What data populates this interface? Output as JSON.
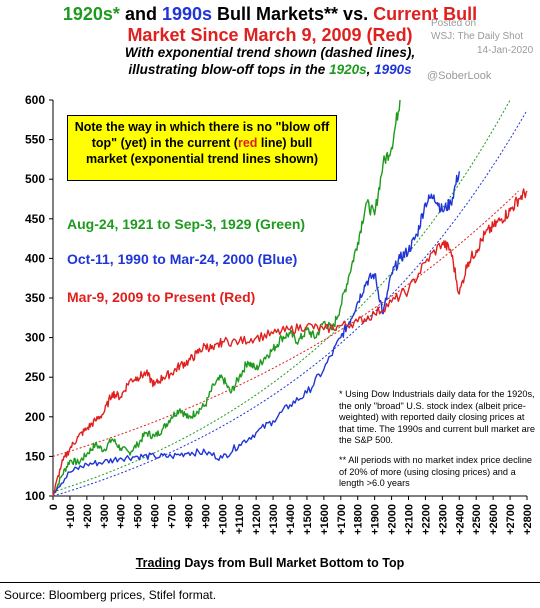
{
  "title": {
    "line1_a": "1920s*",
    "line1_b": " and ",
    "line1_c": "1990s",
    "line1_d": " Bull Markets** vs. ",
    "line1_e": "Current Bull",
    "line2": "Market Since March 9, 2009 (Red)"
  },
  "subtitle": {
    "line1": "With exponential trend shown (dashed lines),",
    "line2_a": "illustrating blow-off tops in the ",
    "line2_b": "1920s",
    "line2_c": ", ",
    "line2_d": "1990s"
  },
  "watermark": {
    "posted": "Posted on",
    "source": "WSJ: The Daily Shot",
    "date": "14-Jan-2020",
    "handle": "@SoberLook"
  },
  "callout": {
    "part1": "Note the way in which there is no \"blow off top\" (yet) in the current (",
    "part2": "red",
    "part3": " line) bull market (exponential trend lines shown)"
  },
  "legend": {
    "green": "Aug-24, 1921 to Sep-3, 1929 (Green)",
    "blue": "Oct-11, 1990 to Mar-24, 2000 (Blue)",
    "red": "Mar-9, 2009 to Present (Red)"
  },
  "notes": {
    "note1": "* Using Dow Industrials daily data for the 1920s, the only \"broad\" U.S. stock index (albeit price-weighted) with reported daily closing prices at that time. The 1990s and current bull market are the S&P 500.",
    "note2": "** All periods with no market index price decline of 20% of more (using closing prices) and a length >6.0 years"
  },
  "source": "Source: Bloomberg prices, Stifel format.",
  "colors": {
    "green": "#1e9a1e",
    "blue": "#1f35d6",
    "red": "#e0201f",
    "callout_bg": "#ffff00"
  },
  "chart_data": {
    "type": "line",
    "xlabel_prefix": "Trading",
    "xlabel_rest": " Days from Bull Market Bottom to Top",
    "ylabel": "",
    "xlim": [
      0,
      2800
    ],
    "ylim": [
      100,
      600
    ],
    "yticks": [
      100,
      150,
      200,
      250,
      300,
      350,
      400,
      450,
      500,
      550,
      600
    ],
    "xticks": [
      "0",
      "+100",
      "+200",
      "+300",
      "+400",
      "+500",
      "+600",
      "+700",
      "+800",
      "+900",
      "+1000",
      "+1100",
      "+1200",
      "+1300",
      "+1400",
      "+1500",
      "+1600",
      "+1700",
      "+1800",
      "+1900",
      "+2000",
      "+2100",
      "+2200",
      "+2300",
      "+2400",
      "+2500",
      "+2600",
      "+2700",
      "+2800"
    ],
    "grid": false,
    "series": [
      {
        "name": "Aug-24, 1921 to Sep-3, 1929 (Green)",
        "color": "#1e9a1e",
        "x": [
          0,
          50,
          100,
          150,
          200,
          250,
          300,
          350,
          400,
          450,
          500,
          550,
          600,
          650,
          700,
          750,
          800,
          850,
          900,
          950,
          1000,
          1050,
          1100,
          1150,
          1200,
          1250,
          1300,
          1350,
          1400,
          1450,
          1500,
          1550,
          1600,
          1650,
          1700,
          1750,
          1800,
          1850,
          1900,
          1950,
          2000,
          2050
        ],
        "y": [
          100,
          125,
          145,
          142,
          153,
          165,
          158,
          172,
          160,
          155,
          165,
          180,
          175,
          185,
          200,
          210,
          198,
          207,
          215,
          240,
          250,
          230,
          250,
          270,
          260,
          275,
          285,
          300,
          305,
          295,
          310,
          300,
          320,
          310,
          340,
          380,
          420,
          470,
          455,
          520,
          540,
          600
        ]
      },
      {
        "name": "Oct-11, 1990 to Mar-24, 2000 (Blue)",
        "color": "#1f35d6",
        "x": [
          0,
          100,
          200,
          300,
          400,
          500,
          600,
          700,
          800,
          900,
          1000,
          1100,
          1200,
          1300,
          1400,
          1500,
          1600,
          1700,
          1750,
          1800,
          1850,
          1900,
          1950,
          2000,
          2050,
          2100,
          2150,
          2200,
          2250,
          2300,
          2350,
          2400
        ],
        "y": [
          105,
          130,
          140,
          143,
          148,
          150,
          150,
          150,
          155,
          155,
          148,
          165,
          180,
          195,
          215,
          230,
          260,
          300,
          320,
          345,
          370,
          380,
          330,
          380,
          400,
          410,
          430,
          470,
          480,
          460,
          470,
          510
        ]
      },
      {
        "name": "Mar-9, 2009 to Present (Red)",
        "color": "#e0201f",
        "x": [
          0,
          50,
          100,
          150,
          200,
          250,
          300,
          350,
          400,
          450,
          500,
          550,
          600,
          650,
          700,
          750,
          800,
          850,
          900,
          950,
          1000,
          1100,
          1200,
          1300,
          1400,
          1500,
          1600,
          1700,
          1800,
          1900,
          2000,
          2100,
          2200,
          2300,
          2350,
          2400,
          2450,
          2500,
          2550,
          2600,
          2650,
          2700,
          2750,
          2800
        ],
        "y": [
          100,
          140,
          160,
          175,
          185,
          195,
          205,
          230,
          225,
          245,
          250,
          255,
          240,
          250,
          255,
          265,
          270,
          280,
          290,
          285,
          295,
          295,
          300,
          305,
          310,
          315,
          310,
          315,
          320,
          330,
          345,
          360,
          395,
          420,
          410,
          355,
          395,
          410,
          430,
          440,
          450,
          460,
          475,
          485
        ]
      }
    ],
    "trendlines": [
      {
        "name": "1920s exponential trend",
        "color": "#1e9a1e",
        "x": [
          0,
          2700
        ],
        "y": [
          105,
          600
        ]
      },
      {
        "name": "1990s exponential trend",
        "color": "#1f35d6",
        "x": [
          0,
          2800
        ],
        "y": [
          100,
          587
        ]
      },
      {
        "name": "current exponential trend",
        "color": "#e0201f",
        "x": [
          0,
          2750
        ],
        "y": [
          150,
          485
        ]
      }
    ]
  }
}
